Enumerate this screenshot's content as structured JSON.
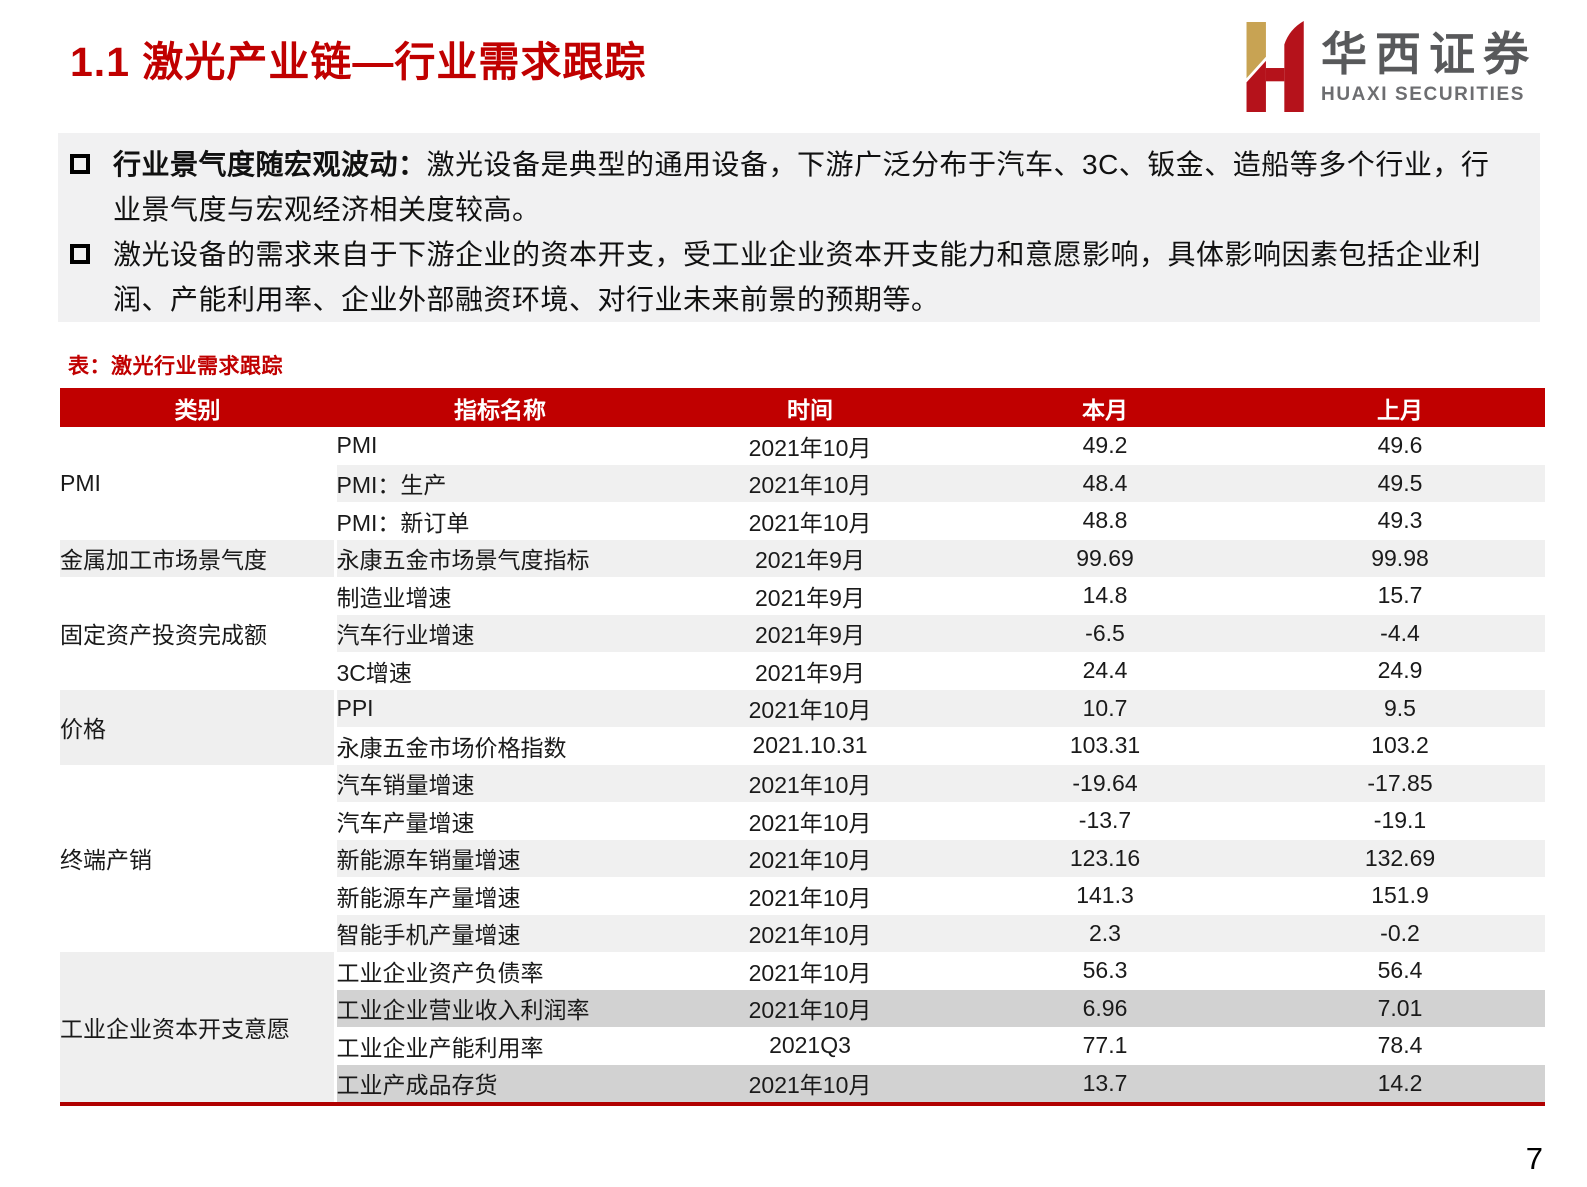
{
  "title": "1.1 激光产业链—行业需求跟踪",
  "logo": {
    "cn": "华西证券",
    "en": "HUAXI SECURITIES"
  },
  "bullets": [
    {
      "lead": "行业景气度随宏观波动：",
      "text": "激光设备是典型的通用设备，下游广泛分布于汽车、3C、钣金、造船等多个行业，行业景气度与宏观经济相关度较高。"
    },
    {
      "lead": "",
      "text": "激光设备的需求来自于下游企业的资本开支，受工业企业资本开支能力和意愿影响，具体影响因素包括企业利润、产能利用率、企业外部融资环境、对行业未来前景的预期等。"
    }
  ],
  "table": {
    "caption": "表：激光行业需求跟踪",
    "headers": [
      "类别",
      "指标名称",
      "时间",
      "本月",
      "上月"
    ],
    "groups": [
      {
        "category": "PMI",
        "category_band": "white",
        "rows": [
          {
            "indicator": "PMI",
            "time": "2021年10月",
            "current": "49.2",
            "previous": "49.6",
            "band": "white"
          },
          {
            "indicator": "PMI：生产",
            "time": "2021年10月",
            "current": "48.4",
            "previous": "49.5",
            "band": "light"
          },
          {
            "indicator": "PMI：新订单",
            "time": "2021年10月",
            "current": "48.8",
            "previous": "49.3",
            "band": "white"
          }
        ]
      },
      {
        "category": "金属加工市场景气度",
        "category_band": "light",
        "rows": [
          {
            "indicator": "永康五金市场景气度指标",
            "time": "2021年9月",
            "current": "99.69",
            "previous": "99.98",
            "band": "light"
          }
        ]
      },
      {
        "category": "固定资产投资完成额",
        "category_band": "white",
        "rows": [
          {
            "indicator": "制造业增速",
            "time": "2021年9月",
            "current": "14.8",
            "previous": "15.7",
            "band": "white"
          },
          {
            "indicator": "汽车行业增速",
            "time": "2021年9月",
            "current": "-6.5",
            "previous": "-4.4",
            "band": "light"
          },
          {
            "indicator": "3C增速",
            "time": "2021年9月",
            "current": "24.4",
            "previous": "24.9",
            "band": "white"
          }
        ]
      },
      {
        "category": "价格",
        "category_band": "light",
        "rows": [
          {
            "indicator": "PPI",
            "time": "2021年10月",
            "current": "10.7",
            "previous": "9.5",
            "band": "light"
          },
          {
            "indicator": "永康五金市场价格指数",
            "time": "2021.10.31",
            "current": "103.31",
            "previous": "103.2",
            "band": "white"
          }
        ]
      },
      {
        "category": "终端产销",
        "category_band": "white",
        "rows": [
          {
            "indicator": "汽车销量增速",
            "time": "2021年10月",
            "current": "-19.64",
            "previous": "-17.85",
            "band": "light"
          },
          {
            "indicator": "汽车产量增速",
            "time": "2021年10月",
            "current": "-13.7",
            "previous": "-19.1",
            "band": "white"
          },
          {
            "indicator": "新能源车销量增速",
            "time": "2021年10月",
            "current": "123.16",
            "previous": "132.69",
            "band": "light"
          },
          {
            "indicator": "新能源车产量增速",
            "time": "2021年10月",
            "current": "141.3",
            "previous": "151.9",
            "band": "white"
          },
          {
            "indicator": "智能手机产量增速",
            "time": "2021年10月",
            "current": "2.3",
            "previous": "-0.2",
            "band": "light"
          }
        ]
      },
      {
        "category": "工业企业资本开支意愿",
        "category_band": "light",
        "rows": [
          {
            "indicator": "工业企业资产负债率",
            "time": "2021年10月",
            "current": "56.3",
            "previous": "56.4",
            "band": "white"
          },
          {
            "indicator": "工业企业营业收入利润率",
            "time": "2021年10月",
            "current": "6.96",
            "previous": "7.01",
            "band": "dark"
          },
          {
            "indicator": "工业企业产能利用率",
            "time": "2021Q3",
            "current": "77.1",
            "previous": "78.4",
            "band": "white"
          },
          {
            "indicator": "工业产成品存货",
            "time": "2021年10月",
            "current": "13.7",
            "previous": "14.2",
            "band": "dark"
          }
        ]
      }
    ]
  },
  "page_number": "7",
  "colors": {
    "accent_red": "#C00000",
    "underline_red": "#B00000",
    "stripe_light": "#F0F0F0",
    "stripe_dark": "#D2D2D2",
    "panel_gray": "#F1F1F2",
    "logo_gold": "#C8A353",
    "logo_red": "#B5121B",
    "logo_text_gray": "#58595B"
  }
}
